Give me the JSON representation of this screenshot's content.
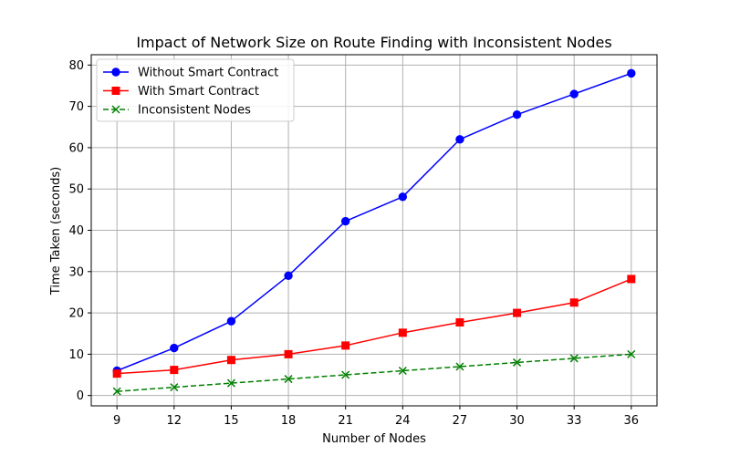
{
  "chart_data": {
    "type": "line",
    "title": "Impact of Network Size on Route Finding with Inconsistent Nodes",
    "xlabel": "Number of Nodes",
    "ylabel": "Time Taken (seconds)",
    "x": [
      9,
      12,
      15,
      18,
      21,
      24,
      27,
      30,
      33,
      36
    ],
    "x_ticks": [
      "9",
      "12",
      "15",
      "18",
      "21",
      "24",
      "27",
      "30",
      "33",
      "36"
    ],
    "y_ticks": [
      "0",
      "10",
      "20",
      "30",
      "40",
      "50",
      "60",
      "70",
      "80"
    ],
    "xlim": [
      7.65,
      37.35
    ],
    "ylim": [
      -2.5,
      82.5
    ],
    "grid": true,
    "legend_position": "top-left",
    "series": [
      {
        "name": "Without Smart Contract",
        "color": "#0000ff",
        "marker": "circle",
        "linestyle": "solid",
        "values": [
          6,
          11.5,
          18,
          29,
          42.2,
          48.1,
          62,
          68,
          73,
          78
        ]
      },
      {
        "name": "With Smart Contract",
        "color": "#ff0000",
        "marker": "square",
        "linestyle": "solid",
        "values": [
          5.3,
          6.2,
          8.6,
          10,
          12.1,
          15.2,
          17.7,
          20,
          22.5,
          28.2
        ]
      },
      {
        "name": "Inconsistent Nodes",
        "color": "#008000",
        "marker": "x",
        "linestyle": "dashed",
        "values": [
          1,
          2,
          3,
          4,
          5,
          6,
          7,
          8,
          9,
          10
        ]
      }
    ]
  }
}
